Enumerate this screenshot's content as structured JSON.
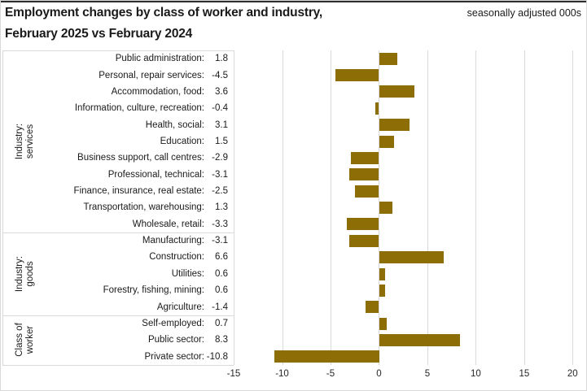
{
  "header": {
    "title_line1": "Employment changes by class of worker and industry,",
    "title_line2": "February 2025 vs February 2024",
    "units_note": "seasonally adjusted 000s"
  },
  "colors": {
    "bar": "#8C6D06",
    "gridline": "#d9d9d9",
    "label_box_border": "#d9d9d9",
    "text": "#1a1a1a"
  },
  "chart_data": {
    "type": "bar",
    "orientation": "horizontal",
    "title": "Employment changes by class of worker and industry, February 2025 vs February 2024",
    "units": "seasonally adjusted 000s",
    "xticks": [
      -15,
      -10,
      -5,
      0,
      5,
      10,
      15,
      20
    ],
    "xlim": [
      -15,
      21.4
    ],
    "grid": "vertical",
    "legend": "none",
    "groups": [
      {
        "label": "Industry: services",
        "categories": [
          "Public administration",
          "Personal, repair services",
          "Accommodation, food",
          "Information, culture, recreation",
          "Health, social",
          "Education",
          "Business support, call centres",
          "Professional, technical",
          "Finance, insurance, real estate",
          "Transportation, warehousing",
          "Wholesale, retail"
        ],
        "values": [
          1.8,
          -4.5,
          3.6,
          -0.4,
          3.1,
          1.5,
          -2.9,
          -3.1,
          -2.5,
          1.3,
          -3.3
        ]
      },
      {
        "label": "Industry: goods",
        "categories": [
          "Manufacturing",
          "Construction",
          "Utilities",
          "Forestry, fishing, mining",
          "Agriculture"
        ],
        "values": [
          -3.1,
          6.6,
          0.6,
          0.6,
          -1.4
        ]
      },
      {
        "label": "Class of worker",
        "categories": [
          "Self-employed",
          "Public sector",
          "Private sector"
        ],
        "values": [
          0.7,
          8.3,
          -10.8
        ]
      }
    ]
  }
}
